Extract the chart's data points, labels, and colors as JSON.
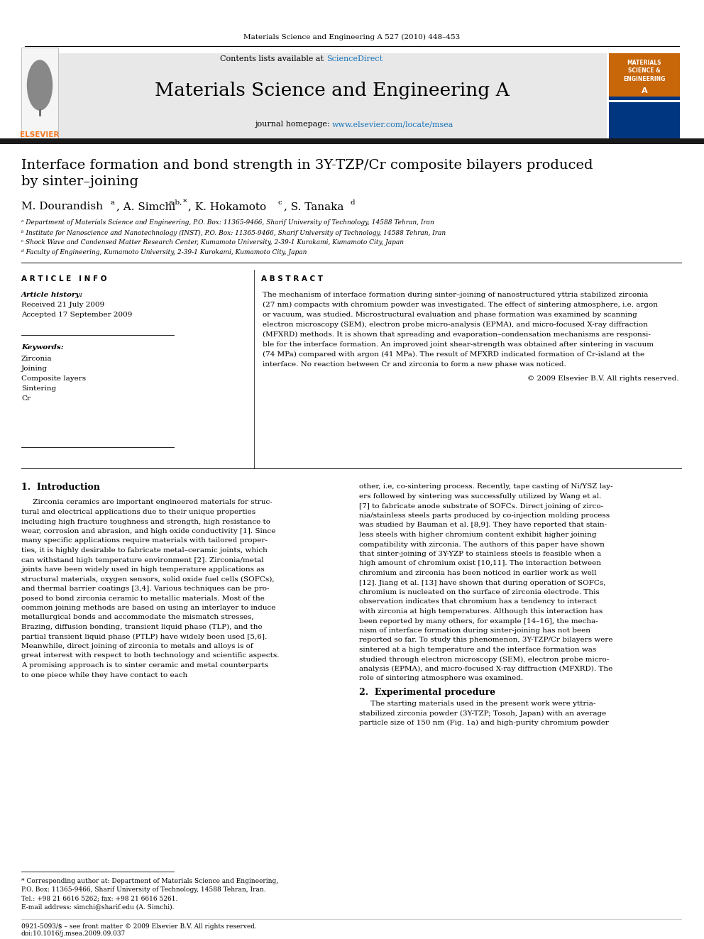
{
  "page_bg": "#ffffff",
  "top_journal_ref": "Materials Science and Engineering A 527 (2010) 448–453",
  "journal_name": "Materials Science and Engineering A",
  "contents_line": "Contents lists available at ScienceDirect",
  "journal_homepage": "journal homepage: www.elsevier.com/locate/msea",
  "header_bg": "#e8e8e8",
  "title_line1": "Interface formation and bond strength in 3Y-TZP/Cr composite bilayers produced",
  "title_line2": "by sinter–joining",
  "affil_a": "ᵃ Department of Materials Science and Engineering, P.O. Box: 11365-9466, Sharif University of Technology, 14588 Tehran, Iran",
  "affil_b": "ᵇ Institute for Nanoscience and Nanotechnology (INST), P.O. Box: 11365-9466, Sharif University of Technology, 14588 Tehran, Iran",
  "affil_c": "ᶜ Shock Wave and Condensed Matter Research Center, Kumamoto University, 2-39-1 Kurokami, Kumamoto City, Japan",
  "affil_d": "ᵈ Faculty of Engineering, Kumamoto University, 2-39-1 Kurokami, Kumamoto City, Japan",
  "article_info_header": "A R T I C L E   I N F O",
  "abstract_header": "A B S T R A C T",
  "article_history_label": "Article history:",
  "received": "Received 21 July 2009",
  "accepted": "Accepted 17 September 2009",
  "keywords_label": "Keywords:",
  "keywords": [
    "Zirconia",
    "Joining",
    "Composite layers",
    "Sintering",
    "Cr"
  ],
  "abstract_lines": [
    "The mechanism of interface formation during sinter–joining of nanostructured yttria stabilized zirconia",
    "(27 nm) compacts with chromium powder was investigated. The effect of sintering atmosphere, i.e. argon",
    "or vacuum, was studied. Microstructural evaluation and phase formation was examined by scanning",
    "electron microscopy (SEM), electron probe micro-analysis (EPMA), and micro-focused X-ray diffraction",
    "(MFXRD) methods. It is shown that spreading and evaporation–condensation mechanisms are responsi-",
    "ble for the interface formation. An improved joint shear-strength was obtained after sintering in vacuum",
    "(74 MPa) compared with argon (41 MPa). The result of MFXRD indicated formation of Cr-island at the",
    "interface. No reaction between Cr and zirconia to form a new phase was noticed."
  ],
  "copyright": "© 2009 Elsevier B.V. All rights reserved.",
  "section1_header": "1.  Introduction",
  "intro_left_lines": [
    "     Zirconia ceramics are important engineered materials for struc-",
    "tural and electrical applications due to their unique properties",
    "including high fracture toughness and strength, high resistance to",
    "wear, corrosion and abrasion, and high oxide conductivity [1]. Since",
    "many specific applications require materials with tailored proper-",
    "ties, it is highly desirable to fabricate metal–ceramic joints, which",
    "can withstand high temperature environment [2]. Zirconia/metal",
    "joints have been widely used in high temperature applications as",
    "structural materials, oxygen sensors, solid oxide fuel cells (SOFCs),",
    "and thermal barrier coatings [3,4]. Various techniques can be pro-",
    "posed to bond zirconia ceramic to metallic materials. Most of the",
    "common joining methods are based on using an interlayer to induce",
    "metallurgical bonds and accommodate the mismatch stresses,",
    "Brazing, diffusion bonding, transient liquid phase (TLP), and the",
    "partial transient liquid phase (PTLP) have widely been used [5,6].",
    "Meanwhile, direct joining of zirconia to metals and alloys is of",
    "great interest with respect to both technology and scientific aspects.",
    "A promising approach is to sinter ceramic and metal counterparts",
    "to one piece while they have contact to each"
  ],
  "intro_right_lines": [
    "other, i.e, co-sintering process. Recently, tape casting of Ni/YSZ lay-",
    "ers followed by sintering was successfully utilized by Wang et al.",
    "[7] to fabricate anode substrate of SOFCs. Direct joining of zirco-",
    "nia/stainless steels parts produced by co-injection molding process",
    "was studied by Bauman et al. [8,9]. They have reported that stain-",
    "less steels with higher chromium content exhibit higher joining",
    "compatibility with zirconia. The authors of this paper have shown",
    "that sinter-joining of 3Y-YZP to stainless steels is feasible when a",
    "high amount of chromium exist [10,11]. The interaction between",
    "chromium and zirconia has been noticed in earlier work as well",
    "[12]. Jiang et al. [13] have shown that during operation of SOFCs,",
    "chromium is nucleated on the surface of zirconia electrode. This",
    "observation indicates that chromium has a tendency to interact",
    "with zirconia at high temperatures. Although this interaction has",
    "been reported by many others, for example [14–16], the mecha-",
    "nism of interface formation during sinter-joining has not been",
    "reported so far. To study this phenomenon, 3Y-TZP/Cr bilayers were",
    "sintered at a high temperature and the interface formation was",
    "studied through electron microscopy (SEM), electron probe micro-",
    "analysis (EPMA), and micro-focused X-ray diffraction (MFXRD). The",
    "role of sintering atmosphere was examined."
  ],
  "section2_header": "2.  Experimental procedure",
  "section2_lines": [
    "     The starting materials used in the present work were yttria-",
    "stabilized zirconia powder (3Y-TZP; Tosoh, Japan) with an average",
    "particle size of 150 nm (Fig. 1a) and high-purity chromium powder"
  ],
  "footnote_lines": [
    "* Corresponding author at: Department of Materials Science and Engineering,",
    "P.O. Box: 11365-9466, Sharif University of Technology, 14588 Tehran, Iran.",
    "Tel.: +98 21 6616 5262; fax: +98 21 6616 5261.",
    "E-mail address: simchi@sharif.edu (A. Simchi)."
  ],
  "footer_left": "0921-5093/$ – see front matter © 2009 Elsevier B.V. All rights reserved.",
  "footer_doi": "doi:10.1016/j.msea.2009.09.037",
  "elsevier_orange": "#f47920",
  "sciencedirect_blue": "#1a75bb",
  "link_blue": "#1a75bb",
  "dark_bar_color": "#1a1a1a",
  "cover_blue_dark": "#003580",
  "cover_blue_mid": "#1a5fa8",
  "cover_orange": "#c8660a"
}
